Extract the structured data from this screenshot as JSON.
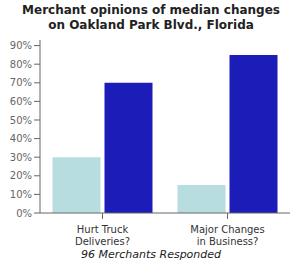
{
  "chart_data": {
    "type": "bar",
    "title": "Merchant opinions of median changes\non Oakland Park Blvd., Florida",
    "categories": [
      "Hurt Truck\nDeliveries?",
      "Major Changes\nin Business?"
    ],
    "series": [
      {
        "color": "#b8dde0",
        "values": [
          30,
          15
        ]
      },
      {
        "color": "#1c1cb8",
        "values": [
          70,
          85
        ]
      }
    ],
    "ylim": [
      0,
      93
    ],
    "yticks": [
      {
        "value": 0,
        "label": "0%"
      },
      {
        "value": 10,
        "label": "10%"
      },
      {
        "value": 20,
        "label": "20%"
      },
      {
        "value": 30,
        "label": "30%"
      },
      {
        "value": 40,
        "label": "40%"
      },
      {
        "value": 50,
        "label": "50%"
      },
      {
        "value": 60,
        "label": "60%"
      },
      {
        "value": 70,
        "label": "70%"
      },
      {
        "value": 80,
        "label": "80%"
      },
      {
        "value": 90,
        "label": "90%"
      }
    ],
    "annotations": [
      "96 Merchants Responded"
    ],
    "grid": false
  }
}
